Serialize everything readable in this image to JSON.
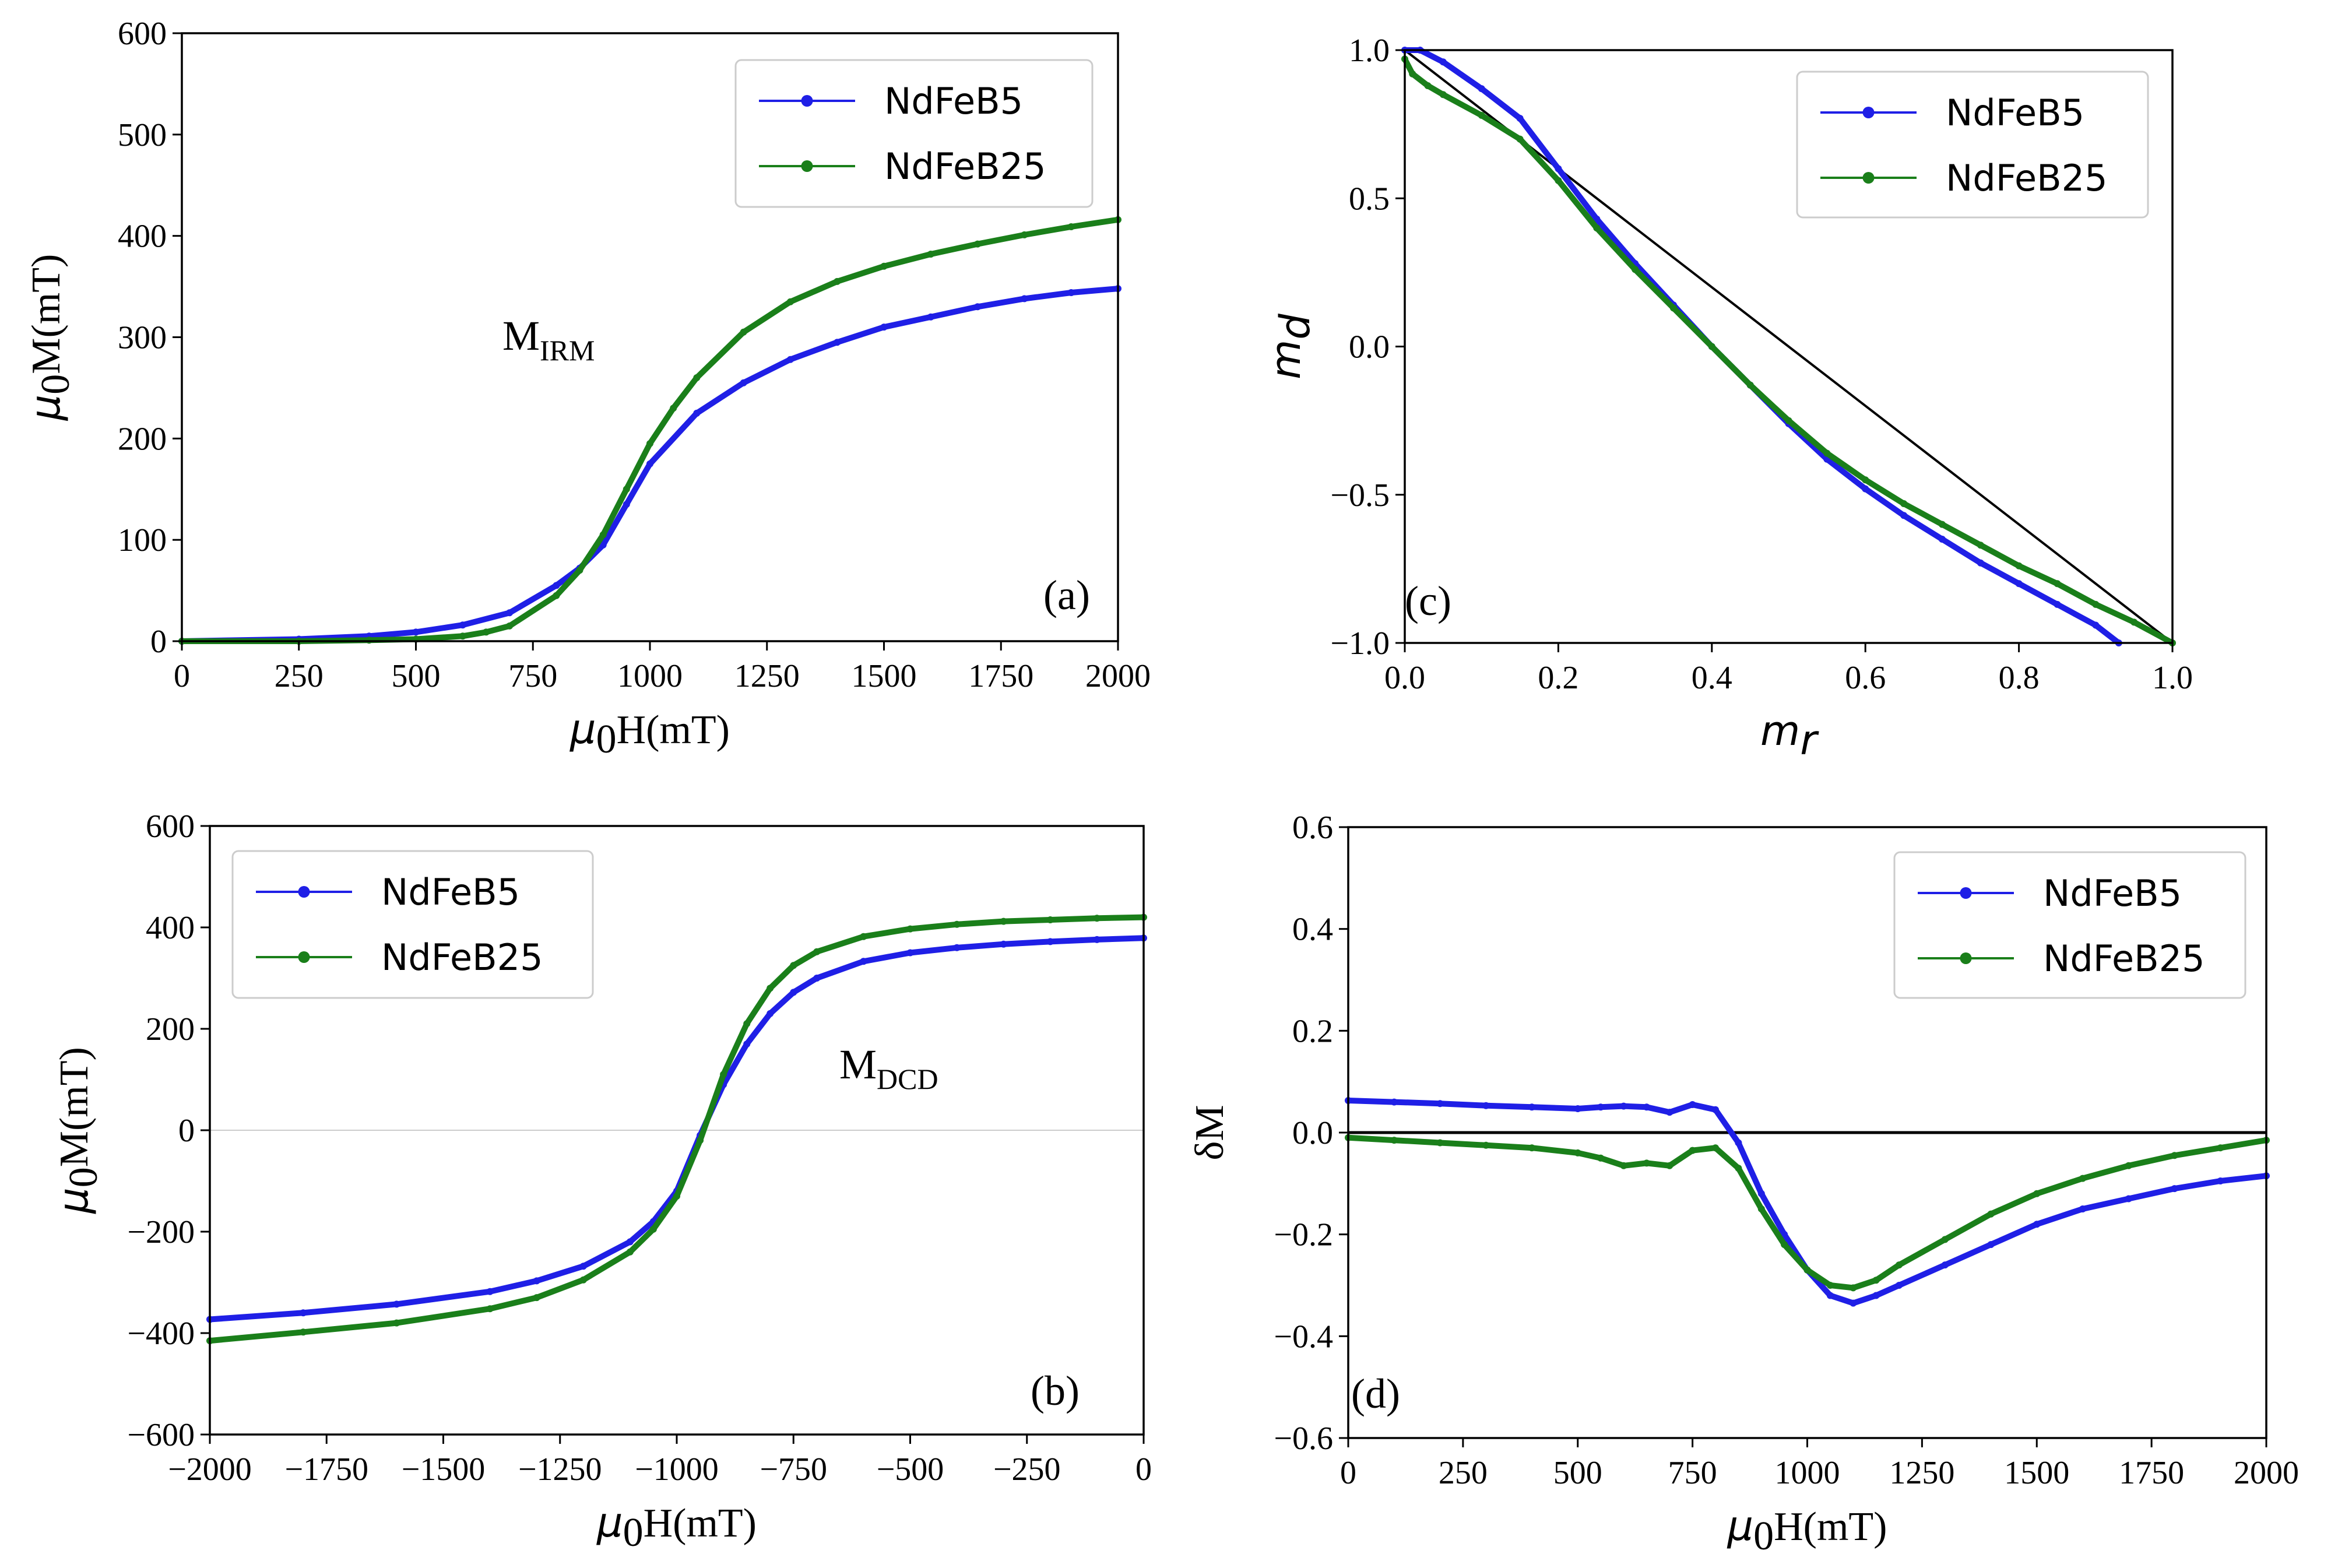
{
  "chart_data": [
    {
      "id": "a",
      "type": "line",
      "panel_label": "(a)",
      "xlabel_main": "μ",
      "xlabel_sub": "0",
      "xlabel_rest": "H(mT)",
      "ylabel_main": "μ",
      "ylabel_sub": "0",
      "ylabel_rest": "M(mT)",
      "annotation_main": "M",
      "annotation_sub": "IRM",
      "xlim": [
        0,
        2000
      ],
      "ylim": [
        0,
        600
      ],
      "xticks": [
        "0",
        "250",
        "500",
        "750",
        "1000",
        "1250",
        "1500",
        "1750",
        "2000"
      ],
      "yticks": [
        "0",
        "100",
        "200",
        "300",
        "400",
        "500",
        "600"
      ],
      "zero_line": false,
      "legend": [
        "NdFeB5",
        "NdFeB25"
      ],
      "series": [
        {
          "name": "NdFeB5",
          "color": "#1f1fe6",
          "x": [
            0,
            250,
            400,
            500,
            600,
            700,
            800,
            850,
            900,
            950,
            1000,
            1100,
            1200,
            1300,
            1400,
            1500,
            1600,
            1700,
            1800,
            1900,
            2000
          ],
          "y": [
            0,
            2,
            5,
            9,
            16,
            28,
            55,
            72,
            95,
            135,
            175,
            225,
            255,
            278,
            295,
            310,
            320,
            330,
            338,
            344,
            348
          ]
        },
        {
          "name": "NdFeB25",
          "color": "#1a7f1a",
          "x": [
            0,
            250,
            400,
            500,
            600,
            650,
            700,
            800,
            850,
            900,
            950,
            1000,
            1050,
            1100,
            1200,
            1300,
            1400,
            1500,
            1600,
            1700,
            1800,
            1900,
            2000
          ],
          "y": [
            0,
            0,
            1,
            2,
            5,
            9,
            15,
            45,
            70,
            105,
            150,
            195,
            230,
            260,
            305,
            335,
            355,
            370,
            382,
            392,
            401,
            409,
            416
          ]
        }
      ]
    },
    {
      "id": "b",
      "type": "line",
      "panel_label": "(b)",
      "xlabel_main": "μ",
      "xlabel_sub": "0",
      "xlabel_rest": "H(mT)",
      "ylabel_main": "μ",
      "ylabel_sub": "0",
      "ylabel_rest": "M(mT)",
      "annotation_main": "M",
      "annotation_sub": "DCD",
      "xlim": [
        -2000,
        0
      ],
      "ylim": [
        -600,
        600
      ],
      "xticks": [
        "−2000",
        "−1750",
        "−1500",
        "−1250",
        "−1000",
        "−750",
        "−500",
        "−250",
        "0"
      ],
      "yticks": [
        "−600",
        "−400",
        "−200",
        "0",
        "200",
        "400",
        "600"
      ],
      "zero_line": true,
      "legend": [
        "NdFeB5",
        "NdFeB25"
      ],
      "series": [
        {
          "name": "NdFeB5",
          "color": "#1f1fe6",
          "x": [
            -2000,
            -1800,
            -1600,
            -1400,
            -1300,
            -1200,
            -1100,
            -1050,
            -1000,
            -950,
            -900,
            -850,
            -800,
            -750,
            -700,
            -600,
            -500,
            -400,
            -300,
            -200,
            -100,
            0
          ],
          "y": [
            -373,
            -360,
            -343,
            -318,
            -297,
            -268,
            -220,
            -180,
            -120,
            -10,
            90,
            170,
            230,
            272,
            300,
            333,
            350,
            360,
            367,
            372,
            376,
            379
          ]
        },
        {
          "name": "NdFeB25",
          "color": "#1a7f1a",
          "x": [
            -2000,
            -1800,
            -1600,
            -1400,
            -1300,
            -1200,
            -1100,
            -1050,
            -1000,
            -950,
            -900,
            -850,
            -800,
            -750,
            -700,
            -600,
            -500,
            -400,
            -300,
            -200,
            -100,
            0
          ],
          "y": [
            -415,
            -398,
            -380,
            -352,
            -330,
            -295,
            -240,
            -195,
            -130,
            -20,
            110,
            210,
            280,
            325,
            352,
            382,
            397,
            406,
            412,
            415,
            418,
            420
          ]
        }
      ]
    },
    {
      "id": "c",
      "type": "line",
      "panel_label": "(c)",
      "xlabel_main": "m",
      "xlabel_sub": "r",
      "ylabel_main": "m",
      "ylabel_sub": "d",
      "xlim": [
        0,
        1
      ],
      "ylim": [
        -1,
        1
      ],
      "xticks": [
        "0.0",
        "0.2",
        "0.4",
        "0.6",
        "0.8",
        "1.0"
      ],
      "yticks": [
        "−1.0",
        "−0.5",
        "0.0",
        "0.5",
        "1.0"
      ],
      "zero_line": false,
      "legend": [
        "NdFeB5",
        "NdFeB25"
      ],
      "reference_line": {
        "color": "#000000",
        "x": [
          0,
          1
        ],
        "y": [
          1,
          -1
        ]
      },
      "series": [
        {
          "name": "NdFeB5",
          "color": "#1f1fe6",
          "x": [
            0.0,
            0.02,
            0.05,
            0.1,
            0.15,
            0.2,
            0.25,
            0.3,
            0.35,
            0.4,
            0.45,
            0.5,
            0.55,
            0.6,
            0.65,
            0.7,
            0.75,
            0.8,
            0.85,
            0.9,
            0.93
          ],
          "y": [
            1.0,
            1.0,
            0.96,
            0.87,
            0.77,
            0.6,
            0.43,
            0.28,
            0.14,
            0.0,
            -0.13,
            -0.26,
            -0.38,
            -0.48,
            -0.57,
            -0.65,
            -0.73,
            -0.8,
            -0.87,
            -0.94,
            -1.0
          ]
        },
        {
          "name": "NdFeB25",
          "color": "#1a7f1a",
          "x": [
            0.0,
            0.01,
            0.03,
            0.05,
            0.1,
            0.15,
            0.2,
            0.25,
            0.3,
            0.35,
            0.4,
            0.45,
            0.5,
            0.55,
            0.6,
            0.65,
            0.7,
            0.75,
            0.8,
            0.85,
            0.9,
            0.95,
            1.0
          ],
          "y": [
            0.97,
            0.92,
            0.88,
            0.85,
            0.78,
            0.7,
            0.56,
            0.4,
            0.26,
            0.13,
            0.0,
            -0.13,
            -0.25,
            -0.36,
            -0.45,
            -0.53,
            -0.6,
            -0.67,
            -0.74,
            -0.8,
            -0.87,
            -0.93,
            -1.0
          ]
        }
      ]
    },
    {
      "id": "d",
      "type": "line",
      "panel_label": "(d)",
      "xlabel_main": "μ",
      "xlabel_sub": "0",
      "xlabel_rest": "H(mT)",
      "ylabel_main": "δM",
      "xlim": [
        0,
        2000
      ],
      "ylim": [
        -0.6,
        0.6
      ],
      "xticks": [
        "0",
        "250",
        "500",
        "750",
        "1000",
        "1250",
        "1500",
        "1750",
        "2000"
      ],
      "yticks": [
        "−0.6",
        "−0.4",
        "−0.2",
        "0.0",
        "0.2",
        "0.4",
        "0.6"
      ],
      "zero_line": true,
      "zero_line_color": "#000000",
      "legend": [
        "NdFeB5",
        "NdFeB25"
      ],
      "series": [
        {
          "name": "NdFeB5",
          "color": "#1f1fe6",
          "x": [
            0,
            100,
            200,
            300,
            400,
            500,
            550,
            600,
            650,
            700,
            750,
            800,
            850,
            900,
            950,
            1000,
            1050,
            1100,
            1150,
            1200,
            1300,
            1400,
            1500,
            1600,
            1700,
            1800,
            1900,
            2000
          ],
          "y": [
            0.063,
            0.06,
            0.057,
            0.053,
            0.05,
            0.047,
            0.05,
            0.052,
            0.05,
            0.04,
            0.055,
            0.045,
            -0.02,
            -0.12,
            -0.2,
            -0.27,
            -0.32,
            -0.335,
            -0.32,
            -0.3,
            -0.26,
            -0.22,
            -0.18,
            -0.15,
            -0.13,
            -0.11,
            -0.095,
            -0.085
          ]
        },
        {
          "name": "NdFeB25",
          "color": "#1a7f1a",
          "x": [
            0,
            100,
            200,
            300,
            400,
            500,
            550,
            600,
            650,
            700,
            750,
            800,
            850,
            900,
            950,
            1000,
            1050,
            1100,
            1150,
            1200,
            1300,
            1400,
            1500,
            1600,
            1700,
            1800,
            1900,
            2000
          ],
          "y": [
            -0.01,
            -0.015,
            -0.02,
            -0.025,
            -0.03,
            -0.04,
            -0.05,
            -0.065,
            -0.06,
            -0.065,
            -0.035,
            -0.03,
            -0.07,
            -0.15,
            -0.22,
            -0.27,
            -0.3,
            -0.305,
            -0.29,
            -0.26,
            -0.21,
            -0.16,
            -0.12,
            -0.09,
            -0.065,
            -0.045,
            -0.03,
            -0.015
          ]
        }
      ]
    }
  ]
}
